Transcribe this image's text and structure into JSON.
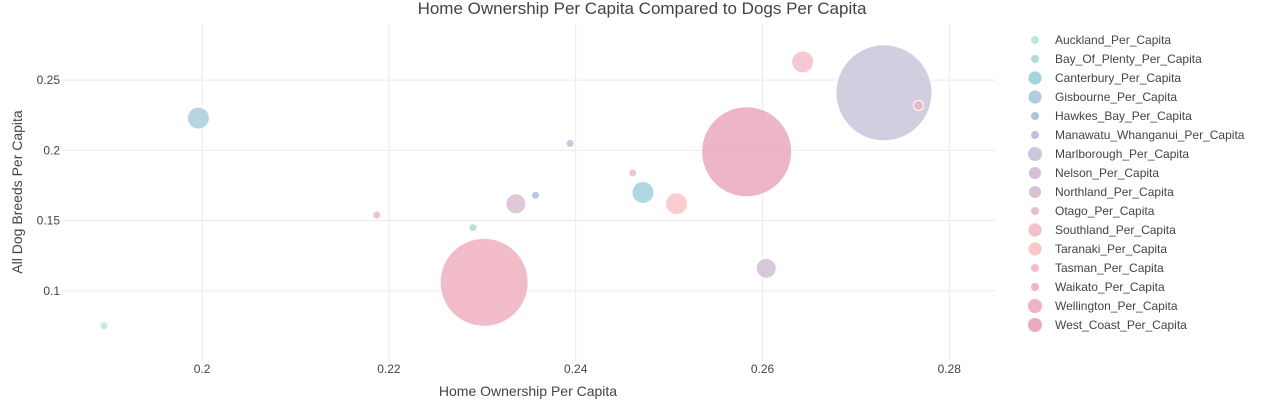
{
  "chart_data": {
    "type": "scatter",
    "title": "Home Ownership Per Capita Compared to Dogs Per Capita",
    "xlabel": "Home Ownership Per Capita",
    "ylabel": "All Dog Breeds Per Capita",
    "xlim": [
      0.185,
      0.285
    ],
    "ylim": [
      0.05,
      0.29
    ],
    "xticks": [
      "0.2",
      "0.22",
      "0.24",
      "0.26",
      "0.28"
    ],
    "yticks": [
      "0.1",
      "0.15",
      "0.2",
      "0.25"
    ],
    "grid": true,
    "legend_position": "right",
    "series": [
      {
        "name": "Auckland_Per_Capita",
        "color": "#a8e6cf",
        "x": 0.1895,
        "y": 0.075,
        "size": 4
      },
      {
        "name": "Bay_Of_Plenty_Per_Capita",
        "color": "#9ed8d3",
        "x": 0.229,
        "y": 0.145,
        "size": 4
      },
      {
        "name": "Canterbury_Per_Capita",
        "color": "#94cbd6",
        "x": 0.2472,
        "y": 0.17,
        "size": 11
      },
      {
        "name": "Gisbourne_Per_Capita",
        "color": "#9fc6da",
        "x": 0.1996,
        "y": 0.223,
        "size": 11
      },
      {
        "name": "Hawkes_Bay_Per_Capita",
        "color": "#a3b5d6",
        "x": 0.2357,
        "y": 0.168,
        "size": 4
      },
      {
        "name": "Manawatu_Whanganui_Per_Capita",
        "color": "#b3b8d6",
        "x": 0.2394,
        "y": 0.205,
        "size": 4
      },
      {
        "name": "Marlborough_Per_Capita",
        "color": "#c3bdd6",
        "x": 0.273,
        "y": 0.241,
        "size": 48
      },
      {
        "name": "Nelson_Per_Capita",
        "color": "#cbb5d0",
        "x": 0.2604,
        "y": 0.116,
        "size": 10
      },
      {
        "name": "Northland_Per_Capita",
        "color": "#d4b6cb",
        "x": 0.2336,
        "y": 0.162,
        "size": 10
      },
      {
        "name": "Otago_Per_Capita",
        "color": "#e2b3c7",
        "x": 0.2461,
        "y": 0.184,
        "size": 4
      },
      {
        "name": "Southland_Per_Capita",
        "color": "#f1b5c3",
        "x": 0.2643,
        "y": 0.263,
        "size": 11
      },
      {
        "name": "Taranaki_Per_Capita",
        "color": "#fbbcc0",
        "x": 0.2508,
        "y": 0.162,
        "size": 11
      },
      {
        "name": "Tasman_Per_Capita",
        "color": "#f7aebd",
        "x": 0.2767,
        "y": 0.232,
        "size": 5
      },
      {
        "name": "Waikato_Per_Capita",
        "color": "#f0a8ba",
        "x": 0.2187,
        "y": 0.154,
        "size": 4
      },
      {
        "name": "Wellington_Per_Capita",
        "color": "#eea4b6",
        "x": 0.2302,
        "y": 0.106,
        "size": 44
      },
      {
        "name": "West_Coast_Per_Capita",
        "color": "#e79cb4",
        "x": 0.2583,
        "y": 0.199,
        "size": 45
      }
    ]
  }
}
